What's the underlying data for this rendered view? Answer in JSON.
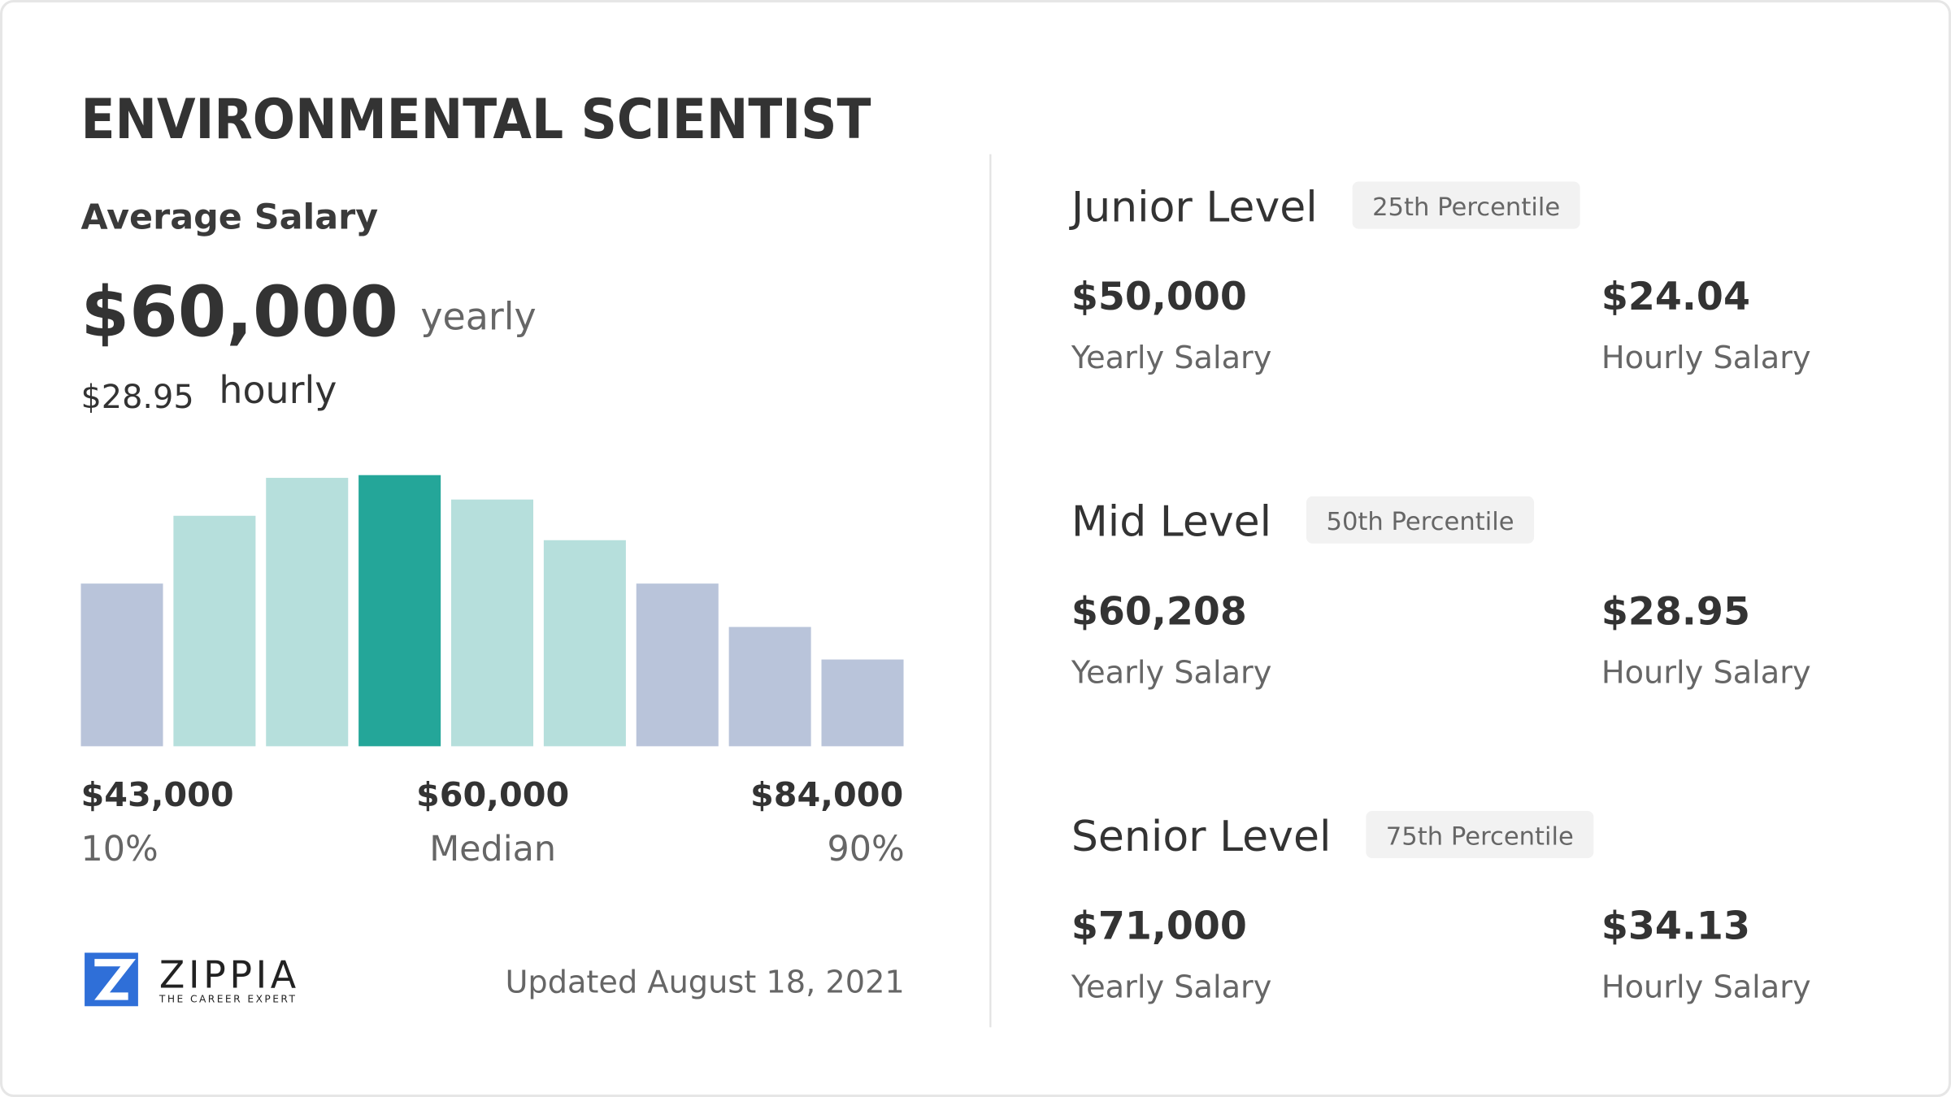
{
  "title": "ENVIRONMENTAL SCIENTIST",
  "average": {
    "label": "Average Salary",
    "yearly": "$60,000",
    "yearly_unit": "yearly",
    "hourly": "$28.95",
    "hourly_unit": "hourly"
  },
  "distribution": {
    "values": [
      60,
      85,
      99,
      100,
      91,
      76,
      60,
      44,
      32
    ],
    "colors": [
      "#b9c4da",
      "#b6dfdc",
      "#b6dfdc",
      "#24a699",
      "#b6dfdc",
      "#b6dfdc",
      "#b9c4da",
      "#b9c4da",
      "#b9c4da"
    ],
    "low": {
      "amount": "$43,000",
      "label": "10%"
    },
    "median": {
      "amount": "$60,000",
      "label": "Median"
    },
    "high": {
      "amount": "$84,000",
      "label": "90%"
    }
  },
  "brand": {
    "name": "ZIPPIA",
    "tagline": "THE CAREER EXPERT"
  },
  "updated": "Updated August 18, 2021",
  "levels": [
    {
      "name": "Junior Level",
      "percentile": "25th Percentile",
      "yearly": "$50,000",
      "yearly_label": "Yearly Salary",
      "hourly": "$24.04",
      "hourly_label": "Hourly Salary"
    },
    {
      "name": "Mid Level",
      "percentile": "50th Percentile",
      "yearly": "$60,208",
      "yearly_label": "Yearly Salary",
      "hourly": "$28.95",
      "hourly_label": "Hourly Salary"
    },
    {
      "name": "Senior Level",
      "percentile": "75th Percentile",
      "yearly": "$71,000",
      "yearly_label": "Yearly Salary",
      "hourly": "$34.13",
      "hourly_label": "Hourly Salary"
    }
  ]
}
